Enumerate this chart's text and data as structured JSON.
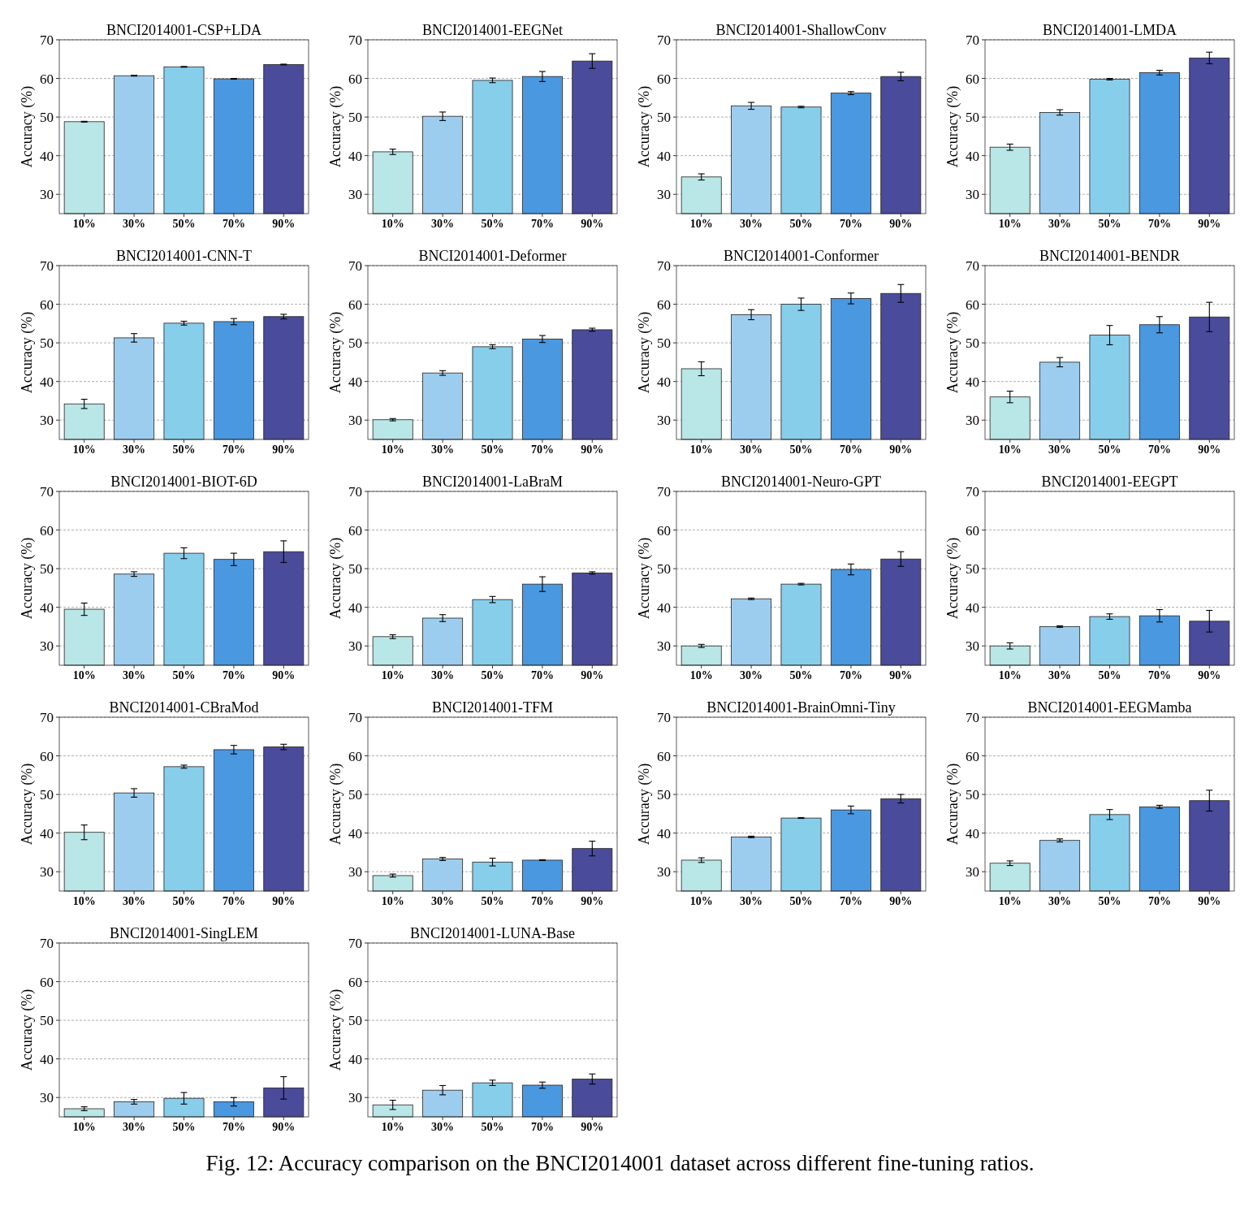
{
  "chart_data": [
    {
      "type": "bar",
      "title": "BNCI2014001-CSP+LDA",
      "ylabel": "Accuracy (%)",
      "categories": [
        "10%",
        "30%",
        "50%",
        "70%",
        "90%"
      ],
      "values": [
        48.8,
        60.7,
        63.0,
        59.9,
        63.6
      ],
      "errors": [
        0.1,
        0.1,
        0.1,
        0.1,
        0.1
      ],
      "colors": [
        "#b9e6e6",
        "#9dcdee",
        "#87ceeb",
        "#4a98e0",
        "#4b4b9b"
      ],
      "ylim": [
        25,
        70
      ],
      "yticks": [
        30,
        40,
        50,
        60,
        70
      ],
      "grid": "y"
    },
    {
      "type": "bar",
      "title": "BNCI2014001-EEGNet",
      "ylabel": "Accuracy (%)",
      "categories": [
        "10%",
        "30%",
        "50%",
        "70%",
        "90%"
      ],
      "values": [
        41.0,
        50.2,
        59.5,
        60.5,
        64.5
      ],
      "errors": [
        0.7,
        1.1,
        0.6,
        1.3,
        1.9
      ],
      "colors": [
        "#b9e6e6",
        "#9dcdee",
        "#87ceeb",
        "#4a98e0",
        "#4b4b9b"
      ],
      "ylim": [
        25,
        70
      ],
      "yticks": [
        30,
        40,
        50,
        60,
        70
      ],
      "grid": "y"
    },
    {
      "type": "bar",
      "title": "BNCI2014001-ShallowConv",
      "ylabel": "Accuracy (%)",
      "categories": [
        "10%",
        "30%",
        "50%",
        "70%",
        "90%"
      ],
      "values": [
        34.5,
        52.9,
        52.6,
        56.2,
        60.5
      ],
      "errors": [
        0.8,
        0.9,
        0.2,
        0.4,
        1.1
      ],
      "colors": [
        "#b9e6e6",
        "#9dcdee",
        "#87ceeb",
        "#4a98e0",
        "#4b4b9b"
      ],
      "ylim": [
        25,
        70
      ],
      "yticks": [
        30,
        40,
        50,
        60,
        70
      ],
      "grid": "y"
    },
    {
      "type": "bar",
      "title": "BNCI2014001-LMDA",
      "ylabel": "Accuracy (%)",
      "categories": [
        "10%",
        "30%",
        "50%",
        "70%",
        "90%"
      ],
      "values": [
        42.2,
        51.2,
        59.8,
        61.5,
        65.3
      ],
      "errors": [
        0.8,
        0.7,
        0.2,
        0.6,
        1.5
      ],
      "colors": [
        "#b9e6e6",
        "#9dcdee",
        "#87ceeb",
        "#4a98e0",
        "#4b4b9b"
      ],
      "ylim": [
        25,
        70
      ],
      "yticks": [
        30,
        40,
        50,
        60,
        70
      ],
      "grid": "y"
    },
    {
      "type": "bar",
      "title": "BNCI2014001-CNN-T",
      "ylabel": "Accuracy (%)",
      "categories": [
        "10%",
        "30%",
        "50%",
        "70%",
        "90%"
      ],
      "values": [
        34.2,
        51.3,
        55.1,
        55.5,
        56.8
      ],
      "errors": [
        1.2,
        1.1,
        0.5,
        0.8,
        0.6
      ],
      "colors": [
        "#b9e6e6",
        "#9dcdee",
        "#87ceeb",
        "#4a98e0",
        "#4b4b9b"
      ],
      "ylim": [
        25,
        70
      ],
      "yticks": [
        30,
        40,
        50,
        60,
        70
      ],
      "grid": "y"
    },
    {
      "type": "bar",
      "title": "BNCI2014001-Deformer",
      "ylabel": "Accuracy (%)",
      "categories": [
        "10%",
        "30%",
        "50%",
        "70%",
        "90%"
      ],
      "values": [
        30.1,
        42.2,
        49.0,
        51.0,
        53.4
      ],
      "errors": [
        0.3,
        0.6,
        0.5,
        0.9,
        0.4
      ],
      "colors": [
        "#b9e6e6",
        "#9dcdee",
        "#87ceeb",
        "#4a98e0",
        "#4b4b9b"
      ],
      "ylim": [
        25,
        70
      ],
      "yticks": [
        30,
        40,
        50,
        60,
        70
      ],
      "grid": "y"
    },
    {
      "type": "bar",
      "title": "BNCI2014001-Conformer",
      "ylabel": "Accuracy (%)",
      "categories": [
        "10%",
        "30%",
        "50%",
        "70%",
        "90%"
      ],
      "values": [
        43.3,
        57.3,
        60.0,
        61.5,
        62.8
      ],
      "errors": [
        1.8,
        1.3,
        1.6,
        1.4,
        2.3
      ],
      "colors": [
        "#b9e6e6",
        "#9dcdee",
        "#87ceeb",
        "#4a98e0",
        "#4b4b9b"
      ],
      "ylim": [
        25,
        70
      ],
      "yticks": [
        30,
        40,
        50,
        60,
        70
      ],
      "grid": "y"
    },
    {
      "type": "bar",
      "title": "BNCI2014001-BENDR",
      "ylabel": "Accuracy (%)",
      "categories": [
        "10%",
        "30%",
        "50%",
        "70%",
        "90%"
      ],
      "values": [
        36.0,
        45.0,
        52.0,
        54.7,
        56.7
      ],
      "errors": [
        1.5,
        1.2,
        2.5,
        2.1,
        3.8
      ],
      "colors": [
        "#b9e6e6",
        "#9dcdee",
        "#87ceeb",
        "#4a98e0",
        "#4b4b9b"
      ],
      "ylim": [
        25,
        70
      ],
      "yticks": [
        30,
        40,
        50,
        60,
        70
      ],
      "grid": "y"
    },
    {
      "type": "bar",
      "title": "BNCI2014001-BIOT-6D",
      "ylabel": "Accuracy (%)",
      "categories": [
        "10%",
        "30%",
        "50%",
        "70%",
        "90%"
      ],
      "values": [
        39.5,
        48.6,
        54.0,
        52.4,
        54.4
      ],
      "errors": [
        1.6,
        0.6,
        1.4,
        1.6,
        2.8
      ],
      "colors": [
        "#b9e6e6",
        "#9dcdee",
        "#87ceeb",
        "#4a98e0",
        "#4b4b9b"
      ],
      "ylim": [
        25,
        70
      ],
      "yticks": [
        30,
        40,
        50,
        60,
        70
      ],
      "grid": "y"
    },
    {
      "type": "bar",
      "title": "BNCI2014001-LaBraM",
      "ylabel": "Accuracy (%)",
      "categories": [
        "10%",
        "30%",
        "50%",
        "70%",
        "90%"
      ],
      "values": [
        32.4,
        37.2,
        42.0,
        46.0,
        48.9
      ],
      "errors": [
        0.5,
        0.9,
        0.8,
        1.9,
        0.3
      ],
      "colors": [
        "#b9e6e6",
        "#9dcdee",
        "#87ceeb",
        "#4a98e0",
        "#4b4b9b"
      ],
      "ylim": [
        25,
        70
      ],
      "yticks": [
        30,
        40,
        50,
        60,
        70
      ],
      "grid": "y"
    },
    {
      "type": "bar",
      "title": "BNCI2014001-Neuro-GPT",
      "ylabel": "Accuracy (%)",
      "categories": [
        "10%",
        "30%",
        "50%",
        "70%",
        "90%"
      ],
      "values": [
        30.0,
        42.2,
        46.0,
        49.8,
        52.5
      ],
      "errors": [
        0.4,
        0.2,
        0.2,
        1.4,
        1.9
      ],
      "colors": [
        "#b9e6e6",
        "#9dcdee",
        "#87ceeb",
        "#4a98e0",
        "#4b4b9b"
      ],
      "ylim": [
        25,
        70
      ],
      "yticks": [
        30,
        40,
        50,
        60,
        70
      ],
      "grid": "y"
    },
    {
      "type": "bar",
      "title": "BNCI2014001-EEGPT",
      "ylabel": "Accuracy (%)",
      "categories": [
        "10%",
        "30%",
        "50%",
        "70%",
        "90%"
      ],
      "values": [
        30.0,
        35.0,
        37.6,
        37.8,
        36.4
      ],
      "errors": [
        0.8,
        0.2,
        0.7,
        1.6,
        2.8
      ],
      "colors": [
        "#b9e6e6",
        "#9dcdee",
        "#87ceeb",
        "#4a98e0",
        "#4b4b9b"
      ],
      "ylim": [
        25,
        70
      ],
      "yticks": [
        30,
        40,
        50,
        60,
        70
      ],
      "grid": "y"
    },
    {
      "type": "bar",
      "title": "BNCI2014001-CBraMod",
      "ylabel": "Accuracy (%)",
      "categories": [
        "10%",
        "30%",
        "50%",
        "70%",
        "90%"
      ],
      "values": [
        40.2,
        50.4,
        57.2,
        61.6,
        62.3
      ],
      "errors": [
        1.9,
        1.1,
        0.4,
        1.1,
        0.7
      ],
      "colors": [
        "#b9e6e6",
        "#9dcdee",
        "#87ceeb",
        "#4a98e0",
        "#4b4b9b"
      ],
      "ylim": [
        25,
        70
      ],
      "yticks": [
        30,
        40,
        50,
        60,
        70
      ],
      "grid": "y"
    },
    {
      "type": "bar",
      "title": "BNCI2014001-TFM",
      "ylabel": "Accuracy (%)",
      "categories": [
        "10%",
        "30%",
        "50%",
        "70%",
        "90%"
      ],
      "values": [
        29.0,
        33.3,
        32.5,
        33.0,
        36.0
      ],
      "errors": [
        0.4,
        0.4,
        1.0,
        0.1,
        1.9
      ],
      "colors": [
        "#b9e6e6",
        "#9dcdee",
        "#87ceeb",
        "#4a98e0",
        "#4b4b9b"
      ],
      "ylim": [
        25,
        70
      ],
      "yticks": [
        30,
        40,
        50,
        60,
        70
      ],
      "grid": "y"
    },
    {
      "type": "bar",
      "title": "BNCI2014001-BrainOmni-Tiny",
      "ylabel": "Accuracy (%)",
      "categories": [
        "10%",
        "30%",
        "50%",
        "70%",
        "90%"
      ],
      "values": [
        33.0,
        39.0,
        43.9,
        46.0,
        48.9
      ],
      "errors": [
        0.6,
        0.2,
        0.1,
        1.0,
        1.1
      ],
      "colors": [
        "#b9e6e6",
        "#9dcdee",
        "#87ceeb",
        "#4a98e0",
        "#4b4b9b"
      ],
      "ylim": [
        25,
        70
      ],
      "yticks": [
        30,
        40,
        50,
        60,
        70
      ],
      "grid": "y"
    },
    {
      "type": "bar",
      "title": "BNCI2014001-EEGMamba",
      "ylabel": "Accuracy (%)",
      "categories": [
        "10%",
        "30%",
        "50%",
        "70%",
        "90%"
      ],
      "values": [
        32.2,
        38.1,
        44.8,
        46.8,
        48.4
      ],
      "errors": [
        0.6,
        0.4,
        1.3,
        0.4,
        2.7
      ],
      "colors": [
        "#b9e6e6",
        "#9dcdee",
        "#87ceeb",
        "#4a98e0",
        "#4b4b9b"
      ],
      "ylim": [
        25,
        70
      ],
      "yticks": [
        30,
        40,
        50,
        60,
        70
      ],
      "grid": "y"
    },
    {
      "type": "bar",
      "title": "BNCI2014001-SingLEM",
      "ylabel": "Accuracy (%)",
      "categories": [
        "10%",
        "30%",
        "50%",
        "70%",
        "90%"
      ],
      "values": [
        27.1,
        28.9,
        29.8,
        28.9,
        32.5
      ],
      "errors": [
        0.5,
        0.6,
        1.5,
        1.1,
        2.9
      ],
      "colors": [
        "#b9e6e6",
        "#9dcdee",
        "#87ceeb",
        "#4a98e0",
        "#4b4b9b"
      ],
      "ylim": [
        25,
        70
      ],
      "yticks": [
        30,
        40,
        50,
        60,
        70
      ],
      "grid": "y"
    },
    {
      "type": "bar",
      "title": "BNCI2014001-LUNA-Base",
      "ylabel": "Accuracy (%)",
      "categories": [
        "10%",
        "30%",
        "50%",
        "70%",
        "90%"
      ],
      "values": [
        28.1,
        31.9,
        33.8,
        33.2,
        34.8
      ],
      "errors": [
        1.2,
        1.2,
        0.7,
        0.8,
        1.3
      ],
      "colors": [
        "#b9e6e6",
        "#9dcdee",
        "#87ceeb",
        "#4a98e0",
        "#4b4b9b"
      ],
      "ylim": [
        25,
        70
      ],
      "yticks": [
        30,
        40,
        50,
        60,
        70
      ],
      "grid": "y",
      "annotations": [
        "Fig. 12: Accuracy comparison on the BNCI2014001 dataset across different fine-tuning ratios."
      ]
    }
  ]
}
